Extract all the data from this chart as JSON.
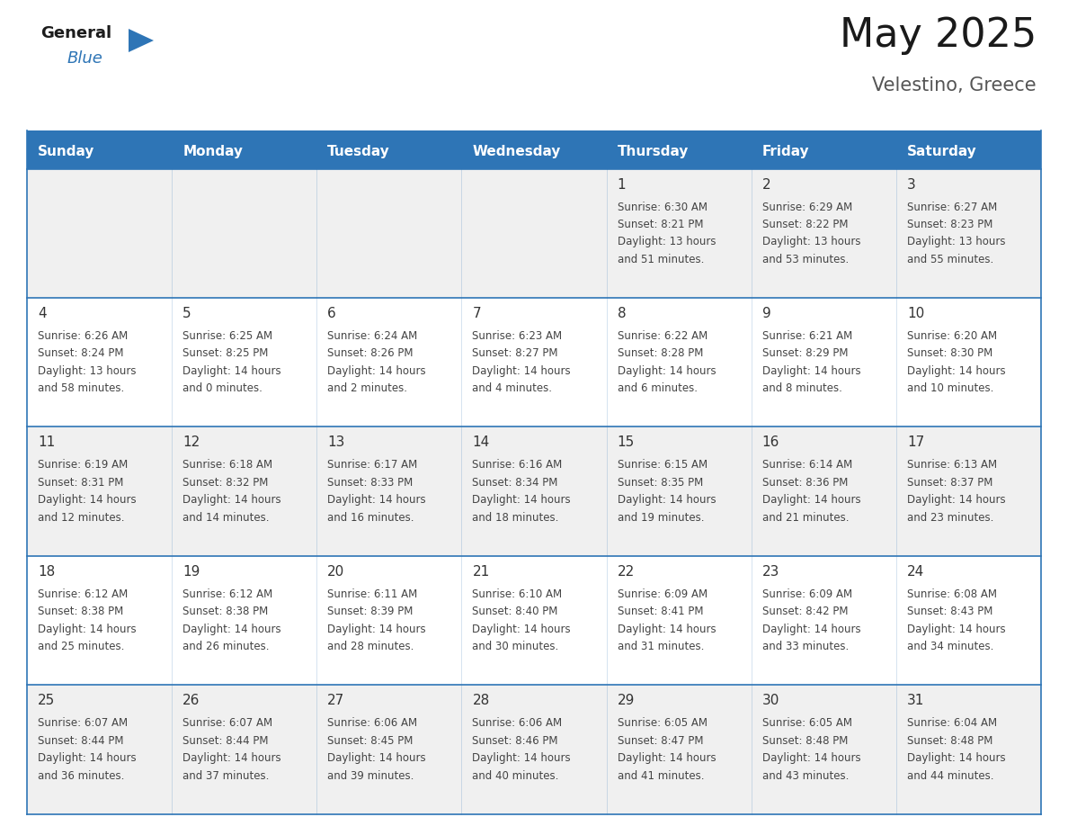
{
  "title": "May 2025",
  "subtitle": "Velestino, Greece",
  "days_of_week": [
    "Sunday",
    "Monday",
    "Tuesday",
    "Wednesday",
    "Thursday",
    "Friday",
    "Saturday"
  ],
  "header_bg": "#2E75B6",
  "header_text_color": "#FFFFFF",
  "row_bg_even": "#F0F0F0",
  "row_bg_odd": "#FFFFFF",
  "cell_border_color": "#2E75B6",
  "day_number_color": "#333333",
  "info_text_color": "#444444",
  "title_color": "#1a1a1a",
  "subtitle_color": "#555555",
  "background_color": "#FFFFFF",
  "calendar_data": [
    [
      null,
      null,
      null,
      null,
      {
        "day": 1,
        "sunrise": "6:30 AM",
        "sunset": "8:21 PM",
        "daylight": "13 hours and 51 minutes."
      },
      {
        "day": 2,
        "sunrise": "6:29 AM",
        "sunset": "8:22 PM",
        "daylight": "13 hours and 53 minutes."
      },
      {
        "day": 3,
        "sunrise": "6:27 AM",
        "sunset": "8:23 PM",
        "daylight": "13 hours and 55 minutes."
      }
    ],
    [
      {
        "day": 4,
        "sunrise": "6:26 AM",
        "sunset": "8:24 PM",
        "daylight": "13 hours and 58 minutes."
      },
      {
        "day": 5,
        "sunrise": "6:25 AM",
        "sunset": "8:25 PM",
        "daylight": "14 hours and 0 minutes."
      },
      {
        "day": 6,
        "sunrise": "6:24 AM",
        "sunset": "8:26 PM",
        "daylight": "14 hours and 2 minutes."
      },
      {
        "day": 7,
        "sunrise": "6:23 AM",
        "sunset": "8:27 PM",
        "daylight": "14 hours and 4 minutes."
      },
      {
        "day": 8,
        "sunrise": "6:22 AM",
        "sunset": "8:28 PM",
        "daylight": "14 hours and 6 minutes."
      },
      {
        "day": 9,
        "sunrise": "6:21 AM",
        "sunset": "8:29 PM",
        "daylight": "14 hours and 8 minutes."
      },
      {
        "day": 10,
        "sunrise": "6:20 AM",
        "sunset": "8:30 PM",
        "daylight": "14 hours and 10 minutes."
      }
    ],
    [
      {
        "day": 11,
        "sunrise": "6:19 AM",
        "sunset": "8:31 PM",
        "daylight": "14 hours and 12 minutes."
      },
      {
        "day": 12,
        "sunrise": "6:18 AM",
        "sunset": "8:32 PM",
        "daylight": "14 hours and 14 minutes."
      },
      {
        "day": 13,
        "sunrise": "6:17 AM",
        "sunset": "8:33 PM",
        "daylight": "14 hours and 16 minutes."
      },
      {
        "day": 14,
        "sunrise": "6:16 AM",
        "sunset": "8:34 PM",
        "daylight": "14 hours and 18 minutes."
      },
      {
        "day": 15,
        "sunrise": "6:15 AM",
        "sunset": "8:35 PM",
        "daylight": "14 hours and 19 minutes."
      },
      {
        "day": 16,
        "sunrise": "6:14 AM",
        "sunset": "8:36 PM",
        "daylight": "14 hours and 21 minutes."
      },
      {
        "day": 17,
        "sunrise": "6:13 AM",
        "sunset": "8:37 PM",
        "daylight": "14 hours and 23 minutes."
      }
    ],
    [
      {
        "day": 18,
        "sunrise": "6:12 AM",
        "sunset": "8:38 PM",
        "daylight": "14 hours and 25 minutes."
      },
      {
        "day": 19,
        "sunrise": "6:12 AM",
        "sunset": "8:38 PM",
        "daylight": "14 hours and 26 minutes."
      },
      {
        "day": 20,
        "sunrise": "6:11 AM",
        "sunset": "8:39 PM",
        "daylight": "14 hours and 28 minutes."
      },
      {
        "day": 21,
        "sunrise": "6:10 AM",
        "sunset": "8:40 PM",
        "daylight": "14 hours and 30 minutes."
      },
      {
        "day": 22,
        "sunrise": "6:09 AM",
        "sunset": "8:41 PM",
        "daylight": "14 hours and 31 minutes."
      },
      {
        "day": 23,
        "sunrise": "6:09 AM",
        "sunset": "8:42 PM",
        "daylight": "14 hours and 33 minutes."
      },
      {
        "day": 24,
        "sunrise": "6:08 AM",
        "sunset": "8:43 PM",
        "daylight": "14 hours and 34 minutes."
      }
    ],
    [
      {
        "day": 25,
        "sunrise": "6:07 AM",
        "sunset": "8:44 PM",
        "daylight": "14 hours and 36 minutes."
      },
      {
        "day": 26,
        "sunrise": "6:07 AM",
        "sunset": "8:44 PM",
        "daylight": "14 hours and 37 minutes."
      },
      {
        "day": 27,
        "sunrise": "6:06 AM",
        "sunset": "8:45 PM",
        "daylight": "14 hours and 39 minutes."
      },
      {
        "day": 28,
        "sunrise": "6:06 AM",
        "sunset": "8:46 PM",
        "daylight": "14 hours and 40 minutes."
      },
      {
        "day": 29,
        "sunrise": "6:05 AM",
        "sunset": "8:47 PM",
        "daylight": "14 hours and 41 minutes."
      },
      {
        "day": 30,
        "sunrise": "6:05 AM",
        "sunset": "8:48 PM",
        "daylight": "14 hours and 43 minutes."
      },
      {
        "day": 31,
        "sunrise": "6:04 AM",
        "sunset": "8:48 PM",
        "daylight": "14 hours and 44 minutes."
      }
    ]
  ]
}
